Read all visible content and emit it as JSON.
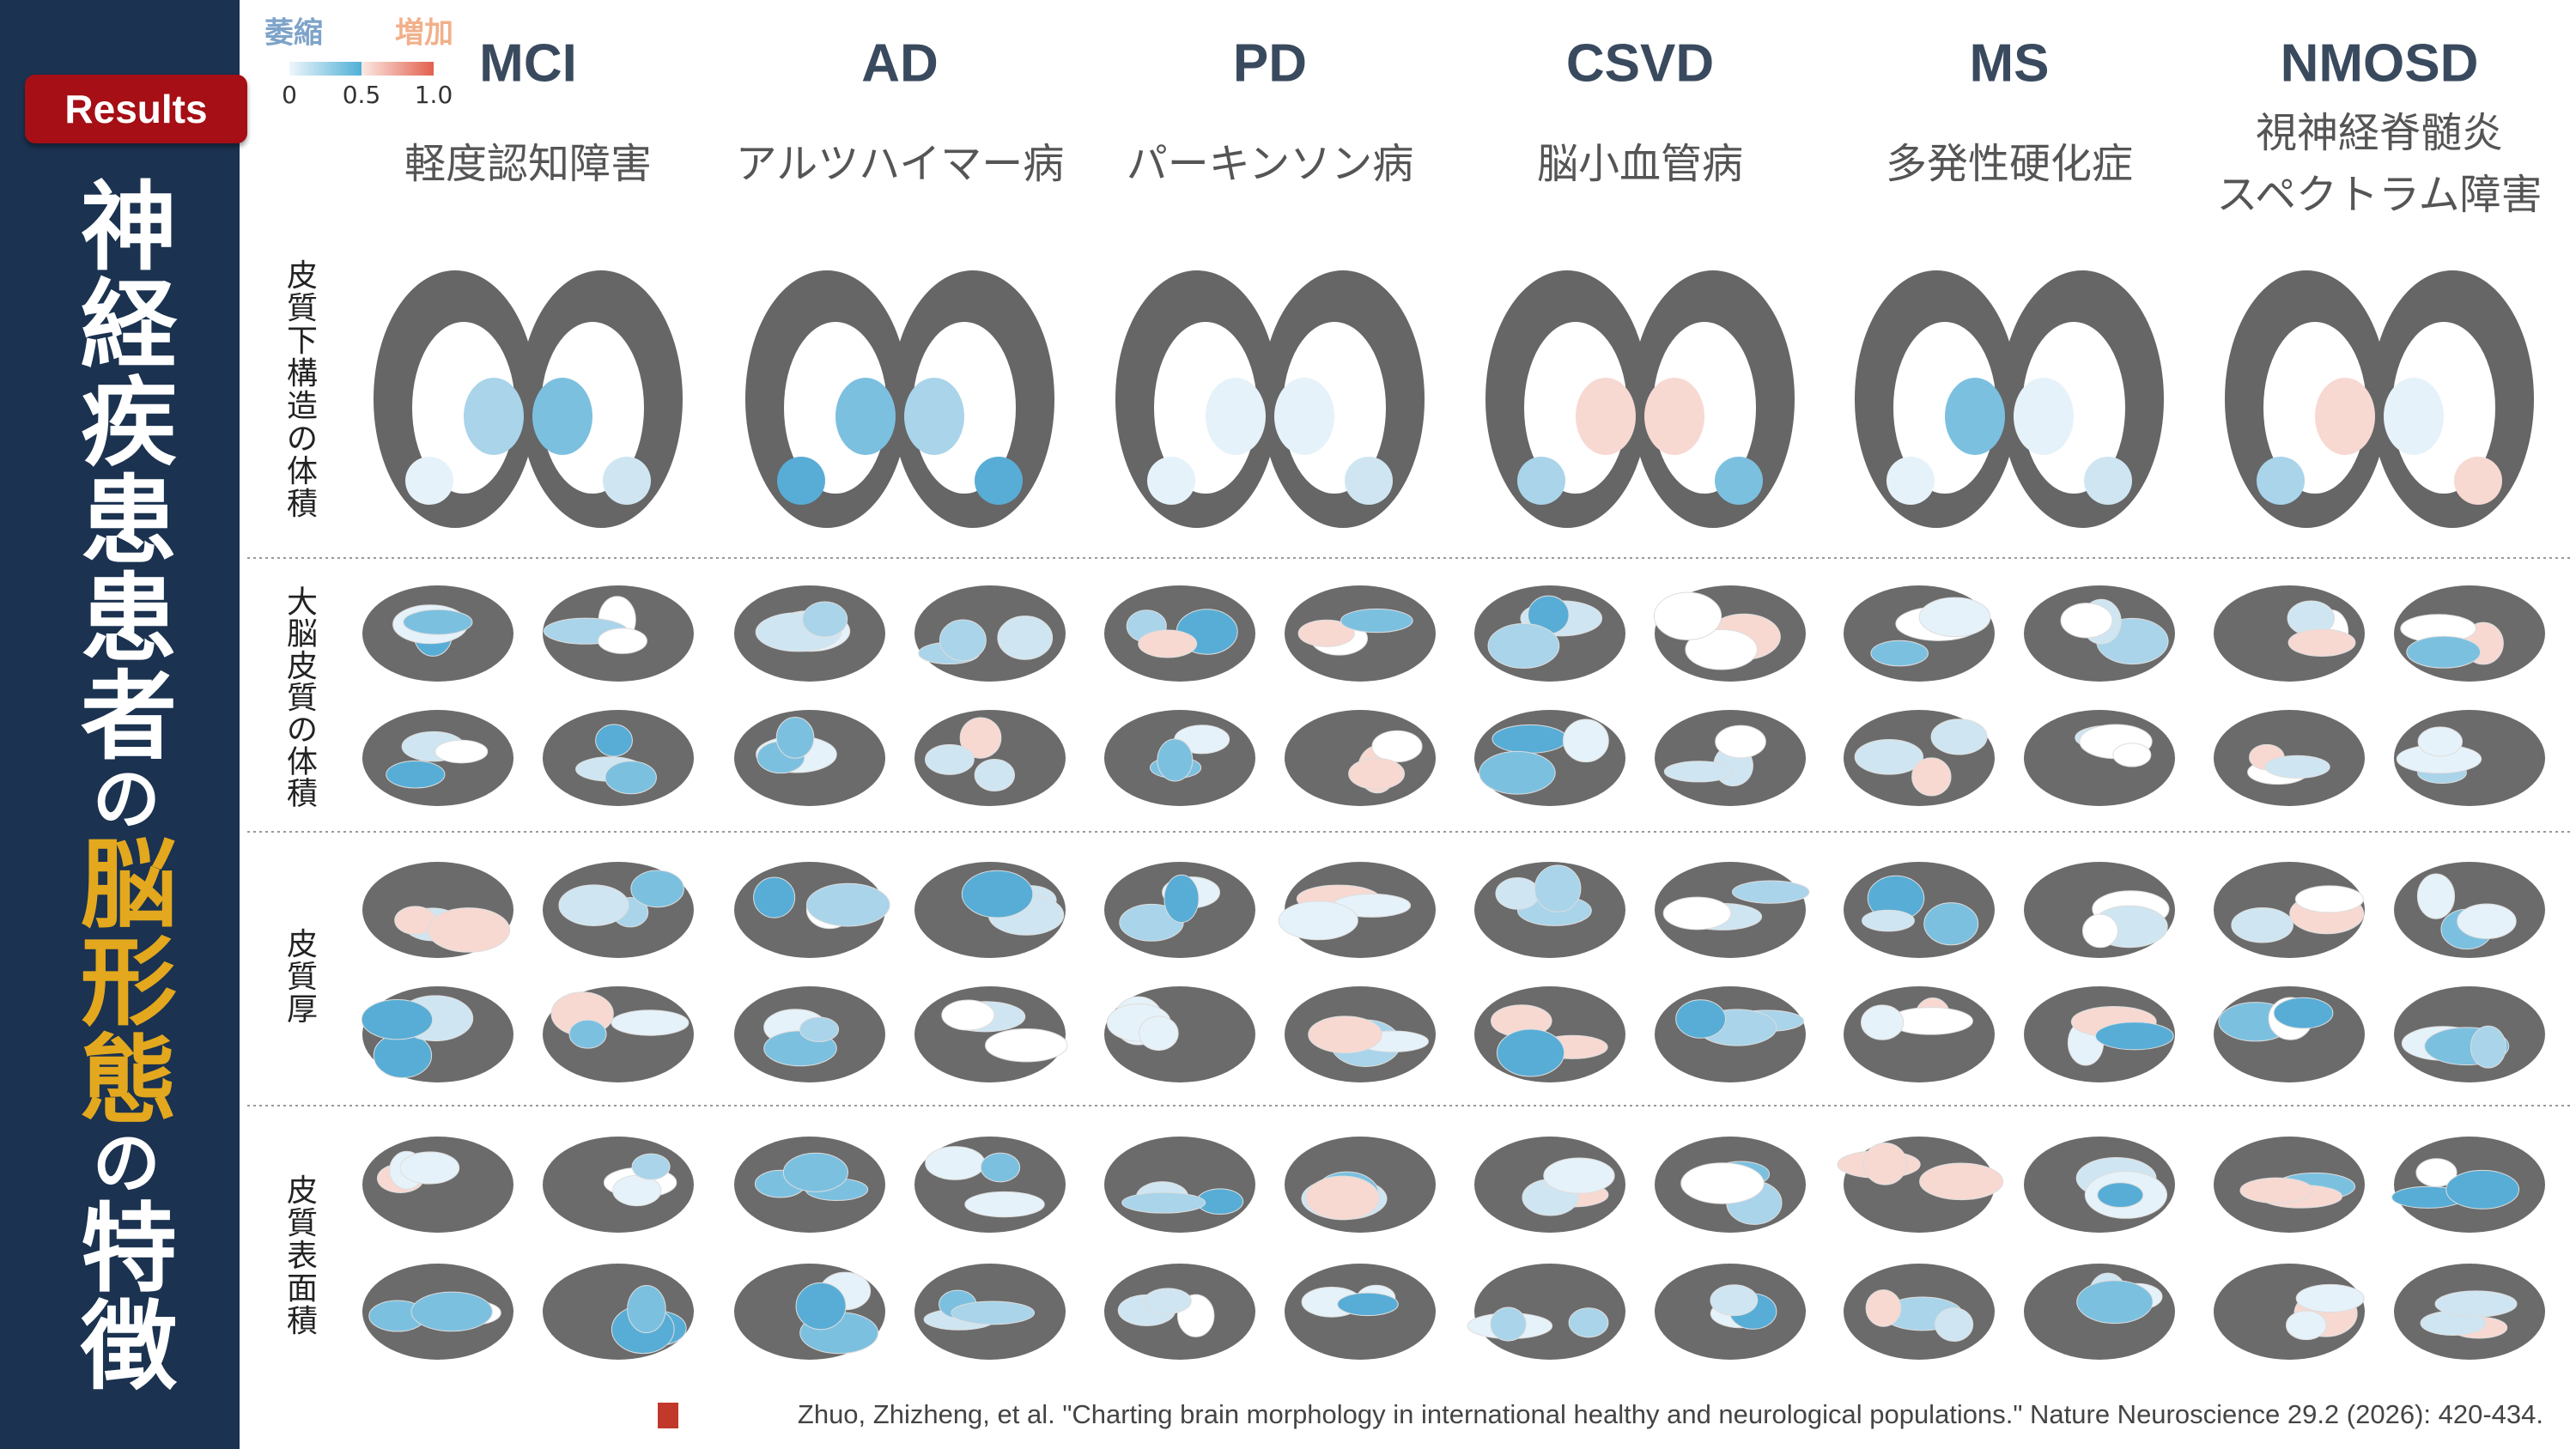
{
  "sidebar": {
    "badge": "Results",
    "title_parts": [
      "神経疾患患者",
      "の",
      "脳形態",
      "の",
      "特徴"
    ]
  },
  "legend": {
    "decrease": "萎縮",
    "increase": "増加",
    "ticks": [
      "0",
      "0.5",
      "1.0"
    ]
  },
  "columns": [
    {
      "abbr": "MCI",
      "name": [
        "軽度認知障害"
      ]
    },
    {
      "abbr": "AD",
      "name": [
        "アルツハイマー病"
      ]
    },
    {
      "abbr": "PD",
      "name": [
        "パーキンソン病"
      ]
    },
    {
      "abbr": "CSVD",
      "name": [
        "脳小血管病"
      ]
    },
    {
      "abbr": "MS",
      "name": [
        "多発性硬化症"
      ]
    },
    {
      "abbr": "NMOSD",
      "name": [
        "視神経脊髄炎",
        "スペクトラム障害"
      ]
    }
  ],
  "rows": [
    "皮質下構造の体積",
    "大脳皮質の体積",
    "皮質厚",
    "皮質表面積"
  ],
  "citation": "Zhuo, Zhizheng, et al. \"Charting brain morphology in international healthy and neurological populations.\" Nature Neuroscience 29.2 (2026): 420-434."
}
